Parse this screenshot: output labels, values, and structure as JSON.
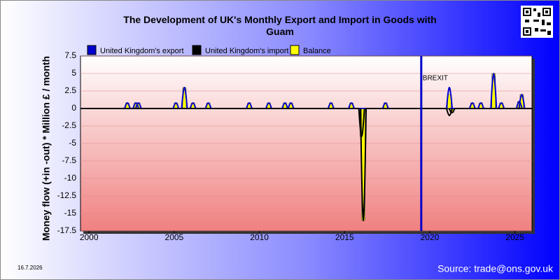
{
  "chart_data": {
    "type": "line",
    "title": "The Development of UK's Monthly Export and Import in Goods with Guam",
    "y_label": "Money flow (+in -out) * Million £ / month",
    "annotation": "BREXIT",
    "annotation_x": 2019.5,
    "date": "16.7.2026",
    "source": "Source: trade@ons.gov.uk",
    "x": [
      2002.25,
      2002.75,
      2002.9,
      2005.1,
      2005.6,
      2006.1,
      2007.0,
      2009.4,
      2010.55,
      2011.5,
      2011.85,
      2014.2,
      2015.4,
      2016.0,
      2016.1,
      2017.4,
      2021.15,
      2021.3,
      2022.5,
      2023.0,
      2023.75,
      2024.2,
      2025.25,
      2025.4
    ],
    "series": [
      {
        "name": "United Kingdom's export",
        "color": "#0000cc",
        "values": [
          0.8,
          0.8,
          0.8,
          0.8,
          3,
          0.8,
          0.8,
          0.8,
          0.8,
          0.8,
          0.8,
          0.8,
          0.8,
          0,
          0,
          0.8,
          3,
          0,
          0.8,
          0.8,
          5,
          0.8,
          1,
          2
        ]
      },
      {
        "name": "United Kingdom's import",
        "color": "#000000",
        "values": [
          0,
          0,
          0,
          0,
          0,
          0,
          0,
          0,
          0,
          0,
          0,
          0,
          0,
          -4,
          -16,
          0,
          -1,
          -0.6,
          0,
          0,
          0,
          0,
          0,
          0
        ]
      },
      {
        "name": "Balance",
        "color": "#ffff00",
        "values": [
          0.8,
          0.8,
          0.8,
          0.8,
          3,
          0.8,
          0.8,
          0.8,
          0.8,
          0.8,
          0.8,
          0.8,
          0.8,
          -4,
          -16,
          0.8,
          2,
          -0.6,
          0.8,
          0.8,
          5,
          0.8,
          1,
          2
        ]
      }
    ],
    "xlim": [
      1999.5,
      2026
    ],
    "xticks": [
      2000,
      2005,
      2010,
      2015,
      2020,
      2025
    ],
    "ylim": [
      -17.5,
      7.5
    ],
    "yticks": [
      7.5,
      5,
      2.5,
      0,
      -2.5,
      -5,
      -7.5,
      -10,
      -12.5,
      -15,
      -17.5
    ],
    "grid": true
  }
}
